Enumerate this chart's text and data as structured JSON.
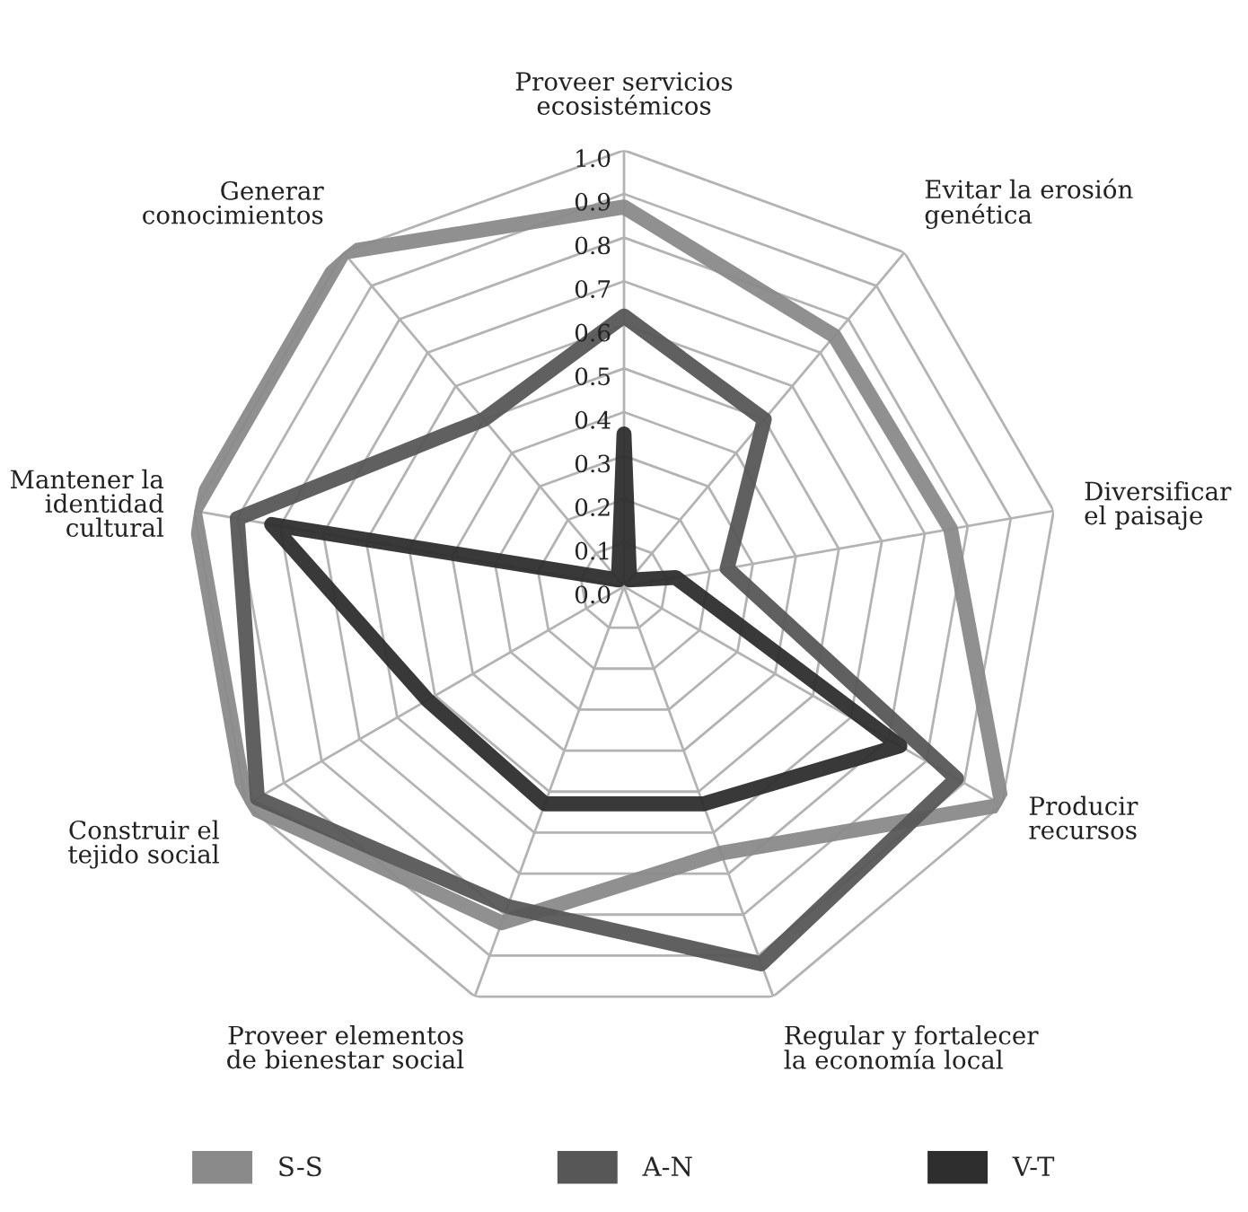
{
  "chart_data": {
    "type": "radar",
    "categories": [
      "Proveer servicios\necosistémicos",
      "Evitar la erosión\ngenética",
      "Diversificar\nel paisaje",
      "Producir\nrecursos",
      "Regular y fortalecer\nla economía local",
      "Proveer elementos\nde bienestar social",
      "Construir el\ntejido social",
      "Mantener la\nidentidad\ncultural",
      "Generar\nconocimientos"
    ],
    "series": [
      {
        "name": "S-S",
        "color": "#8a8a8a",
        "values": [
          0.87,
          0.75,
          0.76,
          1.0,
          0.65,
          0.82,
          1.0,
          1.0,
          1.0
        ]
      },
      {
        "name": "A-N",
        "color": "#575757",
        "values": [
          0.62,
          0.5,
          0.24,
          0.88,
          0.92,
          0.78,
          0.97,
          0.9,
          0.5
        ]
      },
      {
        "name": "V-T",
        "color": "#2e2e2e",
        "values": [
          0.35,
          0.02,
          0.12,
          0.73,
          0.53,
          0.53,
          0.52,
          0.82,
          0.02
        ]
      }
    ],
    "ylim": [
      0,
      1
    ],
    "yticks": [
      {
        "value": 0,
        "label": "0.0"
      },
      {
        "value": 0.1,
        "label": "0.1"
      },
      {
        "value": 0.2,
        "label": "0.2"
      },
      {
        "value": 0.3,
        "label": "0.3"
      },
      {
        "value": 0.4,
        "label": "0.4"
      },
      {
        "value": 0.5,
        "label": "0.5"
      },
      {
        "value": 0.6,
        "label": "0.6"
      },
      {
        "value": 0.7,
        "label": "0.7"
      },
      {
        "value": 0.8,
        "label": "0.8"
      },
      {
        "value": 0.9,
        "label": "0.9"
      },
      {
        "value": 1,
        "label": "1.0"
      }
    ],
    "grid": true,
    "legend": "bottom"
  }
}
